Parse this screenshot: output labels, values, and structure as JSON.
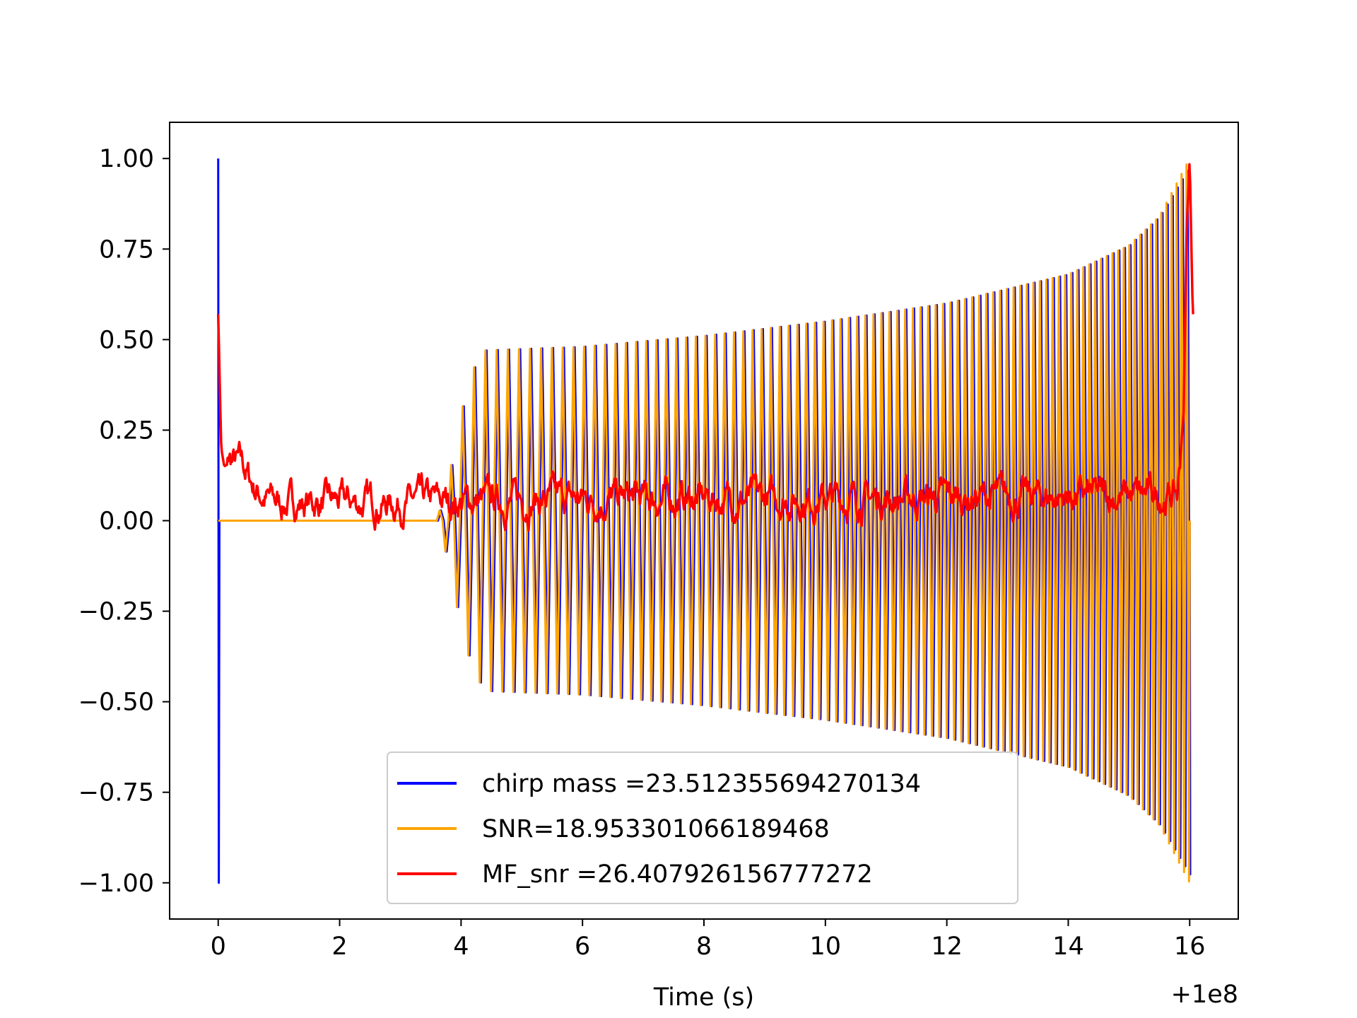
{
  "chart_data": {
    "type": "line",
    "title": "",
    "xlabel": "Time (s)",
    "ylabel": "",
    "x_offset_label": "+1e8",
    "xlim": [
      -0.8,
      16.8
    ],
    "ylim": [
      -1.1,
      1.1
    ],
    "xticks": [
      0,
      2,
      4,
      6,
      8,
      10,
      12,
      14,
      16
    ],
    "xtick_labels": [
      "0",
      "2",
      "4",
      "6",
      "8",
      "10",
      "12",
      "14",
      "16"
    ],
    "yticks": [
      1.0,
      0.75,
      0.5,
      0.25,
      0.0,
      -0.25,
      -0.5,
      -0.75,
      -1.0
    ],
    "ytick_labels": [
      "1.00",
      "0.75",
      "0.50",
      "0.25",
      "0.00",
      "−0.25",
      "−0.50",
      "−0.75",
      "−1.00"
    ],
    "grid": false,
    "legend_position": "lower-center",
    "series": [
      {
        "name": "chirp mass =23.512355694270134",
        "color": "#0000ff",
        "description": "normalized template waveform: spike at t=0 from 1.00 to -1.00, chirp from ~3.6 s with envelope ~0.47 growing to ~1.0 at 16 s",
        "envelope": {
          "x": [
            0,
            3.6,
            3.8,
            4.0,
            4.2,
            4.4,
            6,
            8,
            10,
            12,
            14,
            15,
            15.5,
            16.0
          ],
          "upper": [
            0,
            0.0,
            0.12,
            0.3,
            0.42,
            0.47,
            0.48,
            0.51,
            0.55,
            0.6,
            0.68,
            0.76,
            0.84,
            0.98
          ]
        }
      },
      {
        "name": "SNR=18.953301066189468",
        "color": "#ffa500",
        "description": "whitened signal chirp, envelope from 0 at 3.6 s to ~0.47 at 4.4 s, rising to ~1.0 near 16 s",
        "envelope": {
          "x": [
            0,
            3.6,
            3.8,
            4.0,
            4.2,
            4.4,
            6,
            8,
            10,
            12,
            14,
            15,
            15.5,
            16.0
          ],
          "upper": [
            0,
            0.0,
            0.12,
            0.3,
            0.42,
            0.47,
            0.48,
            0.51,
            0.55,
            0.6,
            0.68,
            0.76,
            0.84,
            1.0
          ]
        }
      },
      {
        "name": "MF_snr =26.407926156777272",
        "color": "#ff0000",
        "description": "matched-filter SNR: starts 0.57 at t=0, drops to ~0.15, noisy baseline ~0.05, peak 1.0 at 16 s",
        "key_points": {
          "x": [
            0,
            0.05,
            0.1,
            0.2,
            0.4,
            0.6,
            0.8,
            1.0,
            3.0,
            6.0,
            10.0,
            15.8,
            15.9,
            15.95,
            16.0,
            16.05
          ],
          "y": [
            0.57,
            0.2,
            0.15,
            0.16,
            0.15,
            0.09,
            0.06,
            0.05,
            0.05,
            0.06,
            0.06,
            0.07,
            0.3,
            0.8,
            1.0,
            0.57
          ]
        }
      }
    ]
  }
}
